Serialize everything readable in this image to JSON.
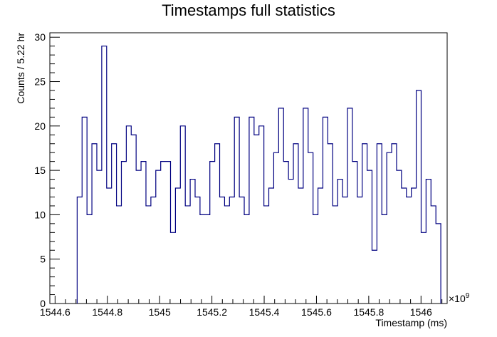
{
  "chart_data": {
    "type": "histogram",
    "title": "Timestamps full statistics",
    "xlabel": "Timestamp (ms)",
    "ylabel": "Counts / 5.22 hr",
    "x_multiplier_label": "×10",
    "x_multiplier_exponent": "9",
    "xlim": [
      1544.58,
      1546.1
    ],
    "ylim": [
      0,
      30.5
    ],
    "x_ticks": [
      1544.6,
      1544.8,
      1545,
      1545.2,
      1545.4,
      1545.6,
      1545.8,
      1546
    ],
    "x_tick_labels": [
      "1544.6",
      "1544.8",
      "1545",
      "1545.2",
      "1545.4",
      "1545.6",
      "1545.8",
      "1546"
    ],
    "y_ticks": [
      0,
      5,
      10,
      15,
      20,
      25,
      30
    ],
    "y_tick_labels": [
      "0",
      "5",
      "10",
      "15",
      "20",
      "25",
      "30"
    ],
    "bin_start": 1544.6845,
    "bin_width": 0.0188,
    "counts": [
      12,
      21,
      10,
      18,
      15,
      29,
      13,
      18,
      11,
      16,
      20,
      19,
      15,
      16,
      11,
      12,
      15,
      16,
      16,
      8,
      13,
      20,
      11,
      14,
      12,
      10,
      10,
      16,
      18,
      12,
      11,
      12,
      21,
      12,
      10,
      21,
      19,
      20,
      11,
      13,
      17,
      22,
      16,
      14,
      18,
      13,
      22,
      17,
      10,
      13,
      21,
      18,
      11,
      14,
      12,
      22,
      16,
      12,
      18,
      15,
      6,
      18,
      10,
      17,
      18,
      15,
      13,
      12,
      13,
      24,
      8,
      14,
      11,
      9
    ],
    "line_color": "#000080"
  }
}
